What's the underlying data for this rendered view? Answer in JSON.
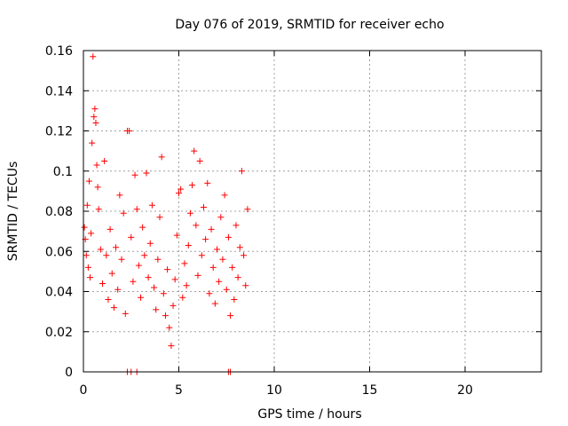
{
  "chart_data": {
    "type": "scatter",
    "title": "Day 076 of 2019, SRMTID for receiver echo",
    "xlabel": "GPS time / hours",
    "ylabel": "SRMTID / TECUs",
    "xlim": [
      0,
      24
    ],
    "ylim": [
      0,
      0.16
    ],
    "grid": true,
    "x_ticks": [
      0,
      5,
      10,
      15,
      20
    ],
    "y_ticks": [
      0,
      0.02,
      0.04,
      0.06,
      0.08,
      0.1,
      0.12,
      0.14,
      0.16
    ],
    "x_tick_labels": [
      "0",
      "5",
      "10",
      "15",
      "20"
    ],
    "y_tick_labels": [
      "0",
      "0.02",
      "0.04",
      "0.06",
      "0.08",
      "0.1",
      "0.12",
      "0.14",
      "0.16"
    ],
    "marker": "+",
    "marker_color": "#ff0000",
    "series": [
      {
        "name": "SRMTID",
        "points": [
          [
            0.05,
            0.072
          ],
          [
            0.1,
            0.066
          ],
          [
            0.15,
            0.058
          ],
          [
            0.2,
            0.083
          ],
          [
            0.25,
            0.052
          ],
          [
            0.3,
            0.095
          ],
          [
            0.35,
            0.047
          ],
          [
            0.4,
            0.069
          ],
          [
            0.45,
            0.114
          ],
          [
            0.5,
            0.157
          ],
          [
            0.55,
            0.127
          ],
          [
            0.6,
            0.131
          ],
          [
            0.65,
            0.124
          ],
          [
            0.7,
            0.103
          ],
          [
            0.75,
            0.092
          ],
          [
            0.8,
            0.081
          ],
          [
            0.9,
            0.061
          ],
          [
            1.0,
            0.044
          ],
          [
            1.1,
            0.105
          ],
          [
            1.2,
            0.058
          ],
          [
            1.3,
            0.036
          ],
          [
            1.4,
            0.071
          ],
          [
            1.5,
            0.049
          ],
          [
            1.6,
            0.032
          ],
          [
            1.7,
            0.062
          ],
          [
            1.8,
            0.041
          ],
          [
            1.9,
            0.088
          ],
          [
            2.0,
            0.056
          ],
          [
            2.1,
            0.079
          ],
          [
            2.2,
            0.029
          ],
          [
            2.3,
            0.12
          ],
          [
            2.4,
            0.12
          ],
          [
            2.5,
            0.067
          ],
          [
            2.6,
            0.045
          ],
          [
            2.7,
            0.098
          ],
          [
            2.8,
            0.081
          ],
          [
            2.9,
            0.053
          ],
          [
            3.0,
            0.037
          ],
          [
            3.1,
            0.072
          ],
          [
            3.2,
            0.058
          ],
          [
            3.3,
            0.099
          ],
          [
            3.4,
            0.047
          ],
          [
            3.5,
            0.064
          ],
          [
            3.6,
            0.083
          ],
          [
            3.7,
            0.042
          ],
          [
            3.8,
            0.031
          ],
          [
            3.9,
            0.056
          ],
          [
            4.0,
            0.077
          ],
          [
            4.1,
            0.107
          ],
          [
            4.2,
            0.039
          ],
          [
            4.3,
            0.028
          ],
          [
            4.4,
            0.051
          ],
          [
            4.5,
            0.022
          ],
          [
            4.6,
            0.013
          ],
          [
            4.7,
            0.033
          ],
          [
            4.8,
            0.046
          ],
          [
            4.9,
            0.068
          ],
          [
            5.0,
            0.089
          ],
          [
            5.1,
            0.091
          ],
          [
            5.2,
            0.037
          ],
          [
            5.3,
            0.054
          ],
          [
            5.4,
            0.043
          ],
          [
            5.5,
            0.063
          ],
          [
            5.6,
            0.079
          ],
          [
            5.7,
            0.093
          ],
          [
            5.8,
            0.11
          ],
          [
            5.9,
            0.073
          ],
          [
            6.0,
            0.048
          ],
          [
            6.1,
            0.105
          ],
          [
            6.2,
            0.058
          ],
          [
            6.3,
            0.082
          ],
          [
            6.4,
            0.066
          ],
          [
            6.5,
            0.094
          ],
          [
            6.6,
            0.039
          ],
          [
            6.7,
            0.071
          ],
          [
            6.8,
            0.052
          ],
          [
            6.9,
            0.034
          ],
          [
            7.0,
            0.061
          ],
          [
            7.1,
            0.045
          ],
          [
            7.2,
            0.077
          ],
          [
            7.3,
            0.056
          ],
          [
            7.4,
            0.088
          ],
          [
            7.5,
            0.041
          ],
          [
            7.6,
            0.067
          ],
          [
            7.7,
            0.028
          ],
          [
            7.8,
            0.052
          ],
          [
            7.9,
            0.036
          ],
          [
            8.0,
            0.073
          ],
          [
            8.1,
            0.047
          ],
          [
            8.2,
            0.062
          ],
          [
            8.3,
            0.1
          ],
          [
            8.4,
            0.058
          ],
          [
            8.5,
            0.043
          ],
          [
            8.6,
            0.081
          ],
          [
            2.3,
            0.0
          ],
          [
            2.5,
            0.0
          ],
          [
            2.8,
            0.0
          ],
          [
            7.6,
            0.0
          ],
          [
            7.7,
            0.0
          ]
        ]
      }
    ]
  }
}
